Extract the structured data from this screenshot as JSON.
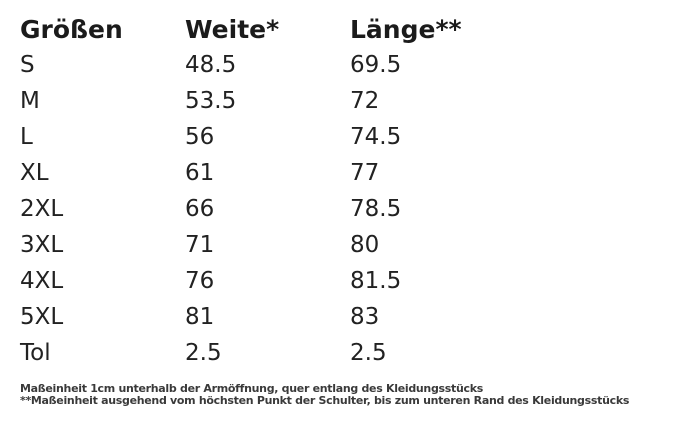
{
  "table": {
    "headers": [
      "Größen",
      "Weite*",
      "Länge**"
    ],
    "rows": [
      [
        "S",
        "48.5",
        "69.5"
      ],
      [
        "M",
        "53.5",
        "72"
      ],
      [
        "L",
        "56",
        "74.5"
      ],
      [
        "XL",
        "61",
        "77"
      ],
      [
        "2XL",
        "66",
        "78.5"
      ],
      [
        "3XL",
        "71",
        "80"
      ],
      [
        "4XL",
        "76",
        "81.5"
      ],
      [
        "5XL",
        "81",
        "83"
      ],
      [
        "Tol",
        "2.5",
        "2.5"
      ]
    ]
  },
  "footnotes": [
    "Maßeinheit 1cm unterhalb der Armöffnung, quer entlang des Kleidungsstücks",
    "**Maßeinheit ausgehend vom höchsten Punkt der Schulter, bis zum unteren Rand des Kleidungsstücks"
  ],
  "colors": {
    "background": "#ffffff",
    "text": "#1b1b1b",
    "footnote_text": "#3a3a3a"
  }
}
